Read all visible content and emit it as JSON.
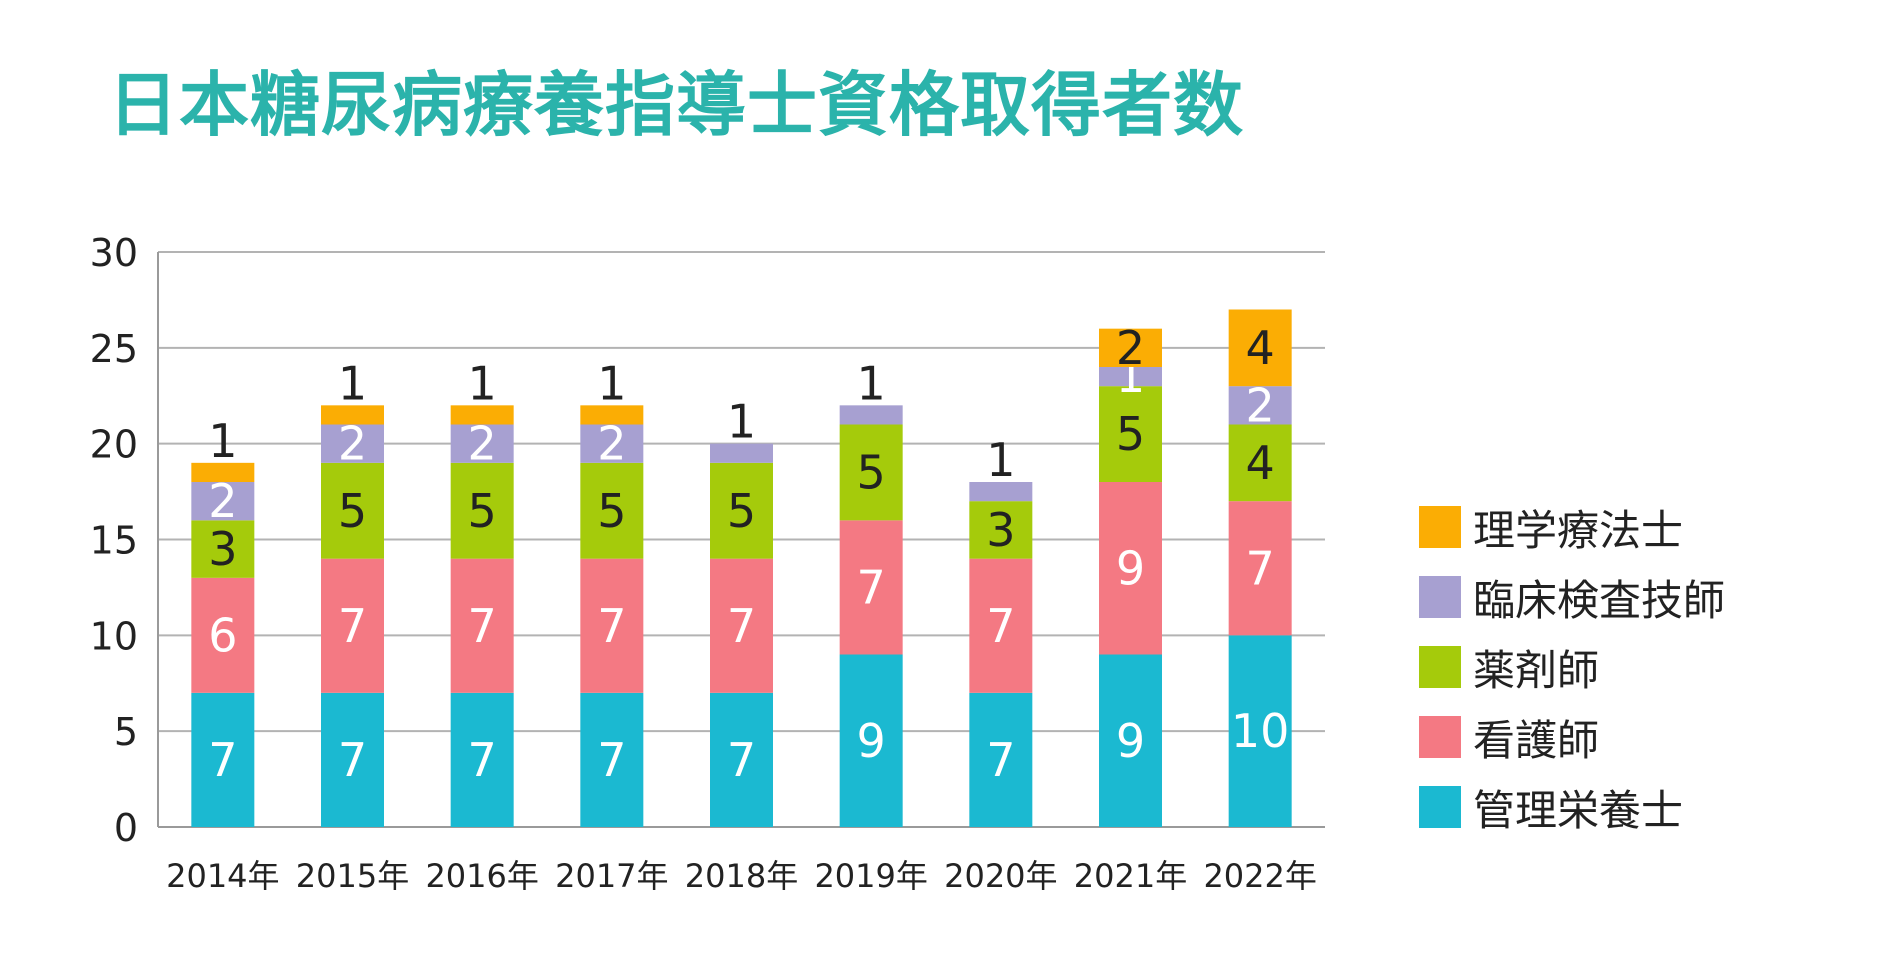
{
  "chart_data": {
    "type": "bar",
    "stacked": true,
    "title": "日本糖尿病療養指導士資格取得者数",
    "xlabel": "",
    "ylabel": "",
    "ylim": [
      0,
      30
    ],
    "yticks": [
      "0",
      "5",
      "10",
      "15",
      "20",
      "25",
      "30"
    ],
    "grid": true,
    "legend_position": "right",
    "categories": [
      "2014年",
      "2015年",
      "2016年",
      "2017年",
      "2018年",
      "2019年",
      "2020年",
      "2021年",
      "2022年"
    ],
    "series": [
      {
        "name": "管理栄養士",
        "color": "#1bb9d1",
        "values": [
          7,
          7,
          7,
          7,
          7,
          9,
          7,
          9,
          10
        ]
      },
      {
        "name": "看護師",
        "color": "#f47983",
        "values": [
          6,
          7,
          7,
          7,
          7,
          7,
          7,
          9,
          7
        ]
      },
      {
        "name": "薬剤師",
        "color": "#a5cb0b",
        "values": [
          3,
          5,
          5,
          5,
          5,
          5,
          3,
          5,
          4
        ]
      },
      {
        "name": "臨床検査技師",
        "color": "#a7a0d1",
        "values": [
          2,
          2,
          2,
          2,
          1,
          1,
          1,
          1,
          2
        ]
      },
      {
        "name": "理学療法士",
        "color": "#fbad04",
        "values": [
          1,
          1,
          1,
          1,
          0,
          0,
          0,
          2,
          4
        ]
      }
    ]
  },
  "legend_order": [
    4,
    3,
    2,
    1,
    0
  ]
}
